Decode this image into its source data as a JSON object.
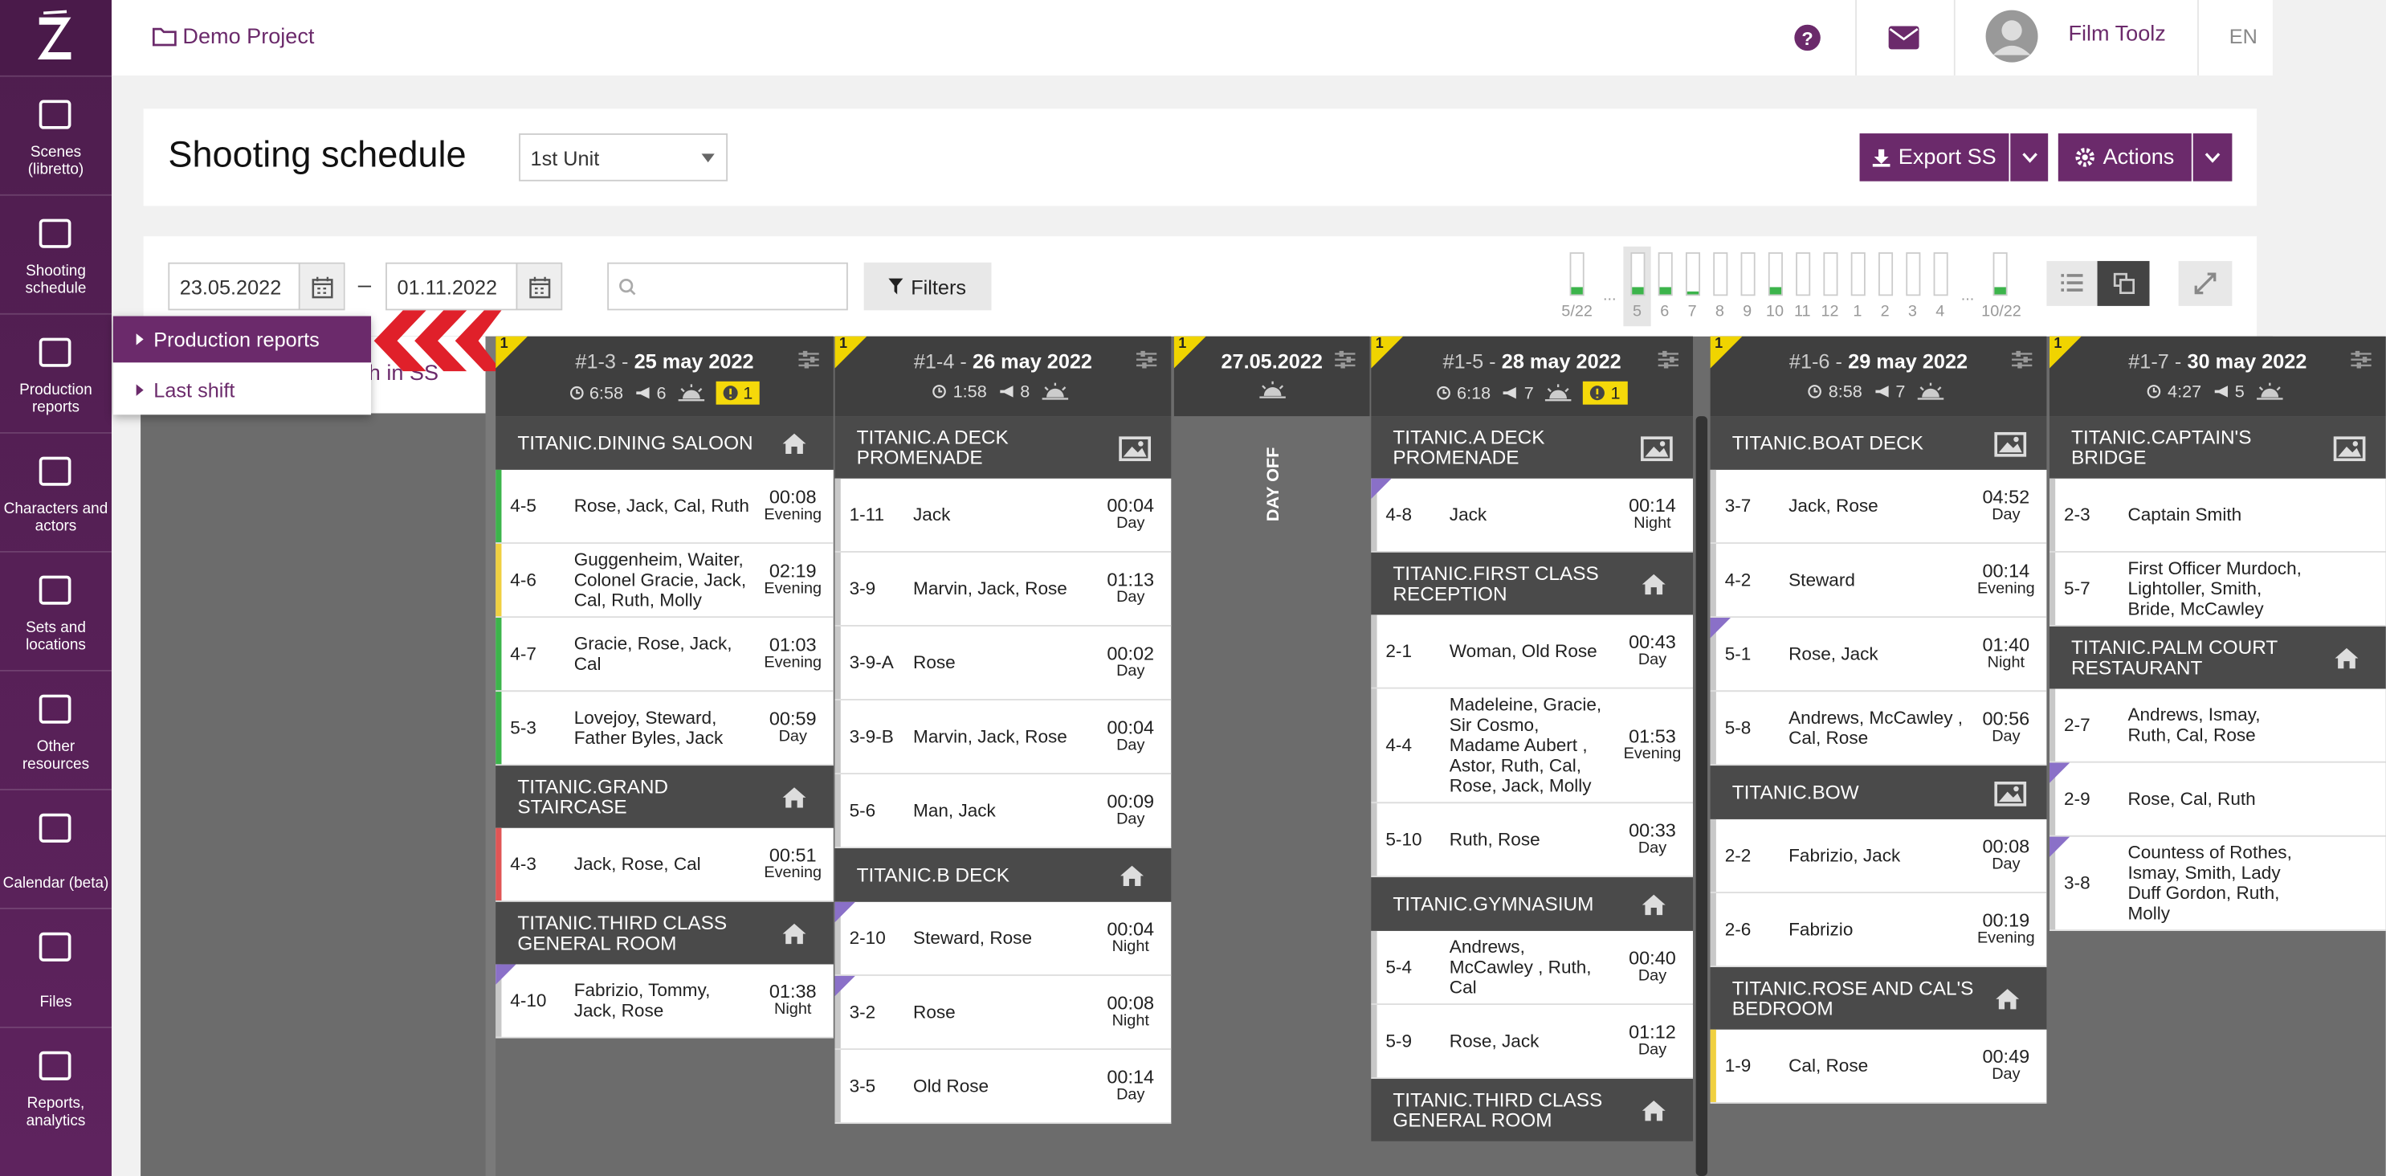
{
  "sidebar": {
    "items": [
      "Scenes (libretto)",
      "Shooting schedule",
      "Production reports",
      "Characters and actors",
      "Sets and locations",
      "Other resources",
      "Calendar (beta)",
      "Files",
      "Reports, analytics"
    ]
  },
  "header": {
    "project": "Demo Project",
    "user": "Film Toolz",
    "language": "EN"
  },
  "toolbar": {
    "title": "Shooting schedule",
    "unit": "1st Unit",
    "export": "Export SS",
    "actions": "Actions"
  },
  "filters": {
    "date_from": "23.05.2022",
    "date_to": "01.11.2022",
    "filters": "Filters",
    "search": "Search in SS"
  },
  "day_strip": [
    "5/22",
    "...",
    "5",
    "6",
    "7",
    "8",
    "9",
    "10",
    "11",
    "12",
    "1",
    "2",
    "3",
    "4",
    "...",
    "10/22"
  ],
  "menu": [
    "Production reports",
    "Last shift"
  ],
  "columns": [
    {
      "badge": "1",
      "id": "#1-3 -",
      "date": "25 may 2022",
      "duration": "6:58",
      "scenes": "6",
      "warning": "1",
      "sets": [
        {
          "name": "TITANIC.DINING SALOON",
          "icon": "home",
          "scenes": [
            {
              "n": "4-5",
              "cast": "Rose, Jack, Cal, Ruth",
              "time": "00:08",
              "period": "Evening",
              "stripe": "#3cb44b"
            },
            {
              "n": "4-6",
              "cast": "Guggenheim, Waiter, Colonel Gracie, Jaсk, Cal, Ruth, Molly",
              "time": "02:19",
              "period": "Evening",
              "stripe": "#f0d040"
            },
            {
              "n": "4-7",
              "cast": "Gracie, Rose, Jaсk, Cal",
              "time": "01:03",
              "period": "Evening",
              "stripe": "#3cb44b"
            },
            {
              "n": "5-3",
              "cast": "Lovejoy, Steward, Father Byles, Jaсk",
              "time": "00:59",
              "period": "Day",
              "stripe": "#3cb44b"
            }
          ]
        },
        {
          "name": "TITANIC.GRAND STAIRCASE",
          "icon": "home",
          "scenes": [
            {
              "n": "4-3",
              "cast": "Jaсk, Rose, Cal",
              "time": "00:51",
              "period": "Evening",
              "stripe": "#e05555"
            }
          ]
        },
        {
          "name": "TITANIC.THIRD CLASS GENERAL ROOM",
          "icon": "home",
          "scenes": [
            {
              "n": "4-10",
              "cast": "Fabrizio, Tommy, Jaсk, Rose",
              "time": "01:38",
              "period": "Night",
              "stripe": "#c8c8c8",
              "corner": true
            }
          ]
        }
      ]
    },
    {
      "badge": "1",
      "id": "#1-4 -",
      "date": "26 may 2022",
      "duration": "1:58",
      "scenes": "8",
      "sets": [
        {
          "name": "TITANIC.A DECK PROMENADE",
          "icon": "image",
          "scenes": [
            {
              "n": "1-11",
              "cast": "Jaсk",
              "time": "00:04",
              "period": "Day",
              "stripe": "#c8c8c8"
            },
            {
              "n": "3-9",
              "cast": "Marvin, Jaсk, Rose",
              "time": "01:13",
              "period": "Day",
              "stripe": "#c8c8c8"
            },
            {
              "n": "3-9-A",
              "cast": "Rose",
              "time": "00:02",
              "period": "Day",
              "stripe": "#c8c8c8"
            },
            {
              "n": "3-9-B",
              "cast": "Marvin, Jaсk, Rose",
              "time": "00:04",
              "period": "Day",
              "stripe": "#c8c8c8"
            },
            {
              "n": "5-6",
              "cast": "Man, Jaсk",
              "time": "00:09",
              "period": "Day",
              "stripe": "#c8c8c8"
            }
          ]
        },
        {
          "name": "TITANIC.B DECK",
          "icon": "home",
          "scenes": [
            {
              "n": "2-10",
              "cast": "Steward, Rose",
              "time": "00:04",
              "period": "Night",
              "stripe": "#c8c8c8",
              "corner": true
            },
            {
              "n": "3-2",
              "cast": "Rose",
              "time": "00:08",
              "period": "Night",
              "stripe": "#c8c8c8",
              "corner": true
            },
            {
              "n": "3-5",
              "cast": "Old Rose",
              "time": "00:14",
              "period": "Day",
              "stripe": "#c8c8c8"
            }
          ]
        }
      ]
    },
    {
      "badge": "1",
      "date": "27.05.2022",
      "day_off": "DAY OFF"
    },
    {
      "badge": "1",
      "id": "#1-5 -",
      "date": "28 may 2022",
      "duration": "6:18",
      "scenes": "7",
      "warning": "1",
      "sets": [
        {
          "name": "TITANIC.A DECK PROMENADE",
          "icon": "image",
          "scenes": [
            {
              "n": "4-8",
              "cast": "Jaсk",
              "time": "00:14",
              "period": "Night",
              "stripe": "#c8c8c8",
              "corner": true
            }
          ]
        },
        {
          "name": "TITANIC.FIRST CLASS RECEPTION",
          "icon": "home",
          "scenes": [
            {
              "n": "2-1",
              "cast": "Woman, Old Rose",
              "time": "00:43",
              "period": "Day",
              "stripe": "#c8c8c8"
            },
            {
              "n": "4-4",
              "cast": "Madeleine, Gracie, Sir Cosmo, Madame Aubert , Astor, Ruth, Cal, Rose, Jaсk, Molly",
              "time": "01:53",
              "period": "Evening",
              "stripe": "#c8c8c8"
            },
            {
              "n": "5-10",
              "cast": "Ruth, Rose",
              "time": "00:33",
              "period": "Day",
              "stripe": "#c8c8c8"
            }
          ]
        },
        {
          "name": "TITANIC.GYMNASIUM",
          "icon": "home",
          "scenes": [
            {
              "n": "5-4",
              "cast": "Andrews, McCawley , Ruth, Cal",
              "time": "00:40",
              "period": "Day",
              "stripe": "#c8c8c8"
            },
            {
              "n": "5-9",
              "cast": "Rose, Jaсk",
              "time": "01:12",
              "period": "Day",
              "stripe": "#c8c8c8"
            }
          ]
        },
        {
          "name": "TITANIC.THIRD CLASS GENERAL ROOM",
          "icon": "home",
          "scenes": []
        }
      ]
    },
    {
      "badge": "1",
      "id": "#1-6 -",
      "date": "29 may 2022",
      "duration": "8:58",
      "scenes": "7",
      "sets": [
        {
          "name": "TITANIC.BOAT DECK",
          "icon": "image",
          "scenes": [
            {
              "n": "3-7",
              "cast": "Jaсk, Rose",
              "time": "04:52",
              "period": "Day",
              "stripe": "#c8c8c8"
            },
            {
              "n": "4-2",
              "cast": "Steward",
              "time": "00:14",
              "period": "Evening",
              "stripe": "#c8c8c8"
            },
            {
              "n": "5-1",
              "cast": "Rose, Jaсk",
              "time": "01:40",
              "period": "Night",
              "stripe": "#c8c8c8",
              "corner": true
            },
            {
              "n": "5-8",
              "cast": "Andrews, McCawley , Cal, Rose",
              "time": "00:56",
              "period": "Day",
              "stripe": "#c8c8c8"
            }
          ]
        },
        {
          "name": "TITANIC.BOW",
          "icon": "image",
          "scenes": [
            {
              "n": "2-2",
              "cast": "Fabrizio, Jaсk",
              "time": "00:08",
              "period": "Day",
              "stripe": "#c8c8c8"
            },
            {
              "n": "2-6",
              "cast": "Fabrizio",
              "time": "00:19",
              "period": "Evening",
              "stripe": "#c8c8c8"
            }
          ]
        },
        {
          "name": "TITANIC.ROSE AND CAL'S BEDROOM",
          "icon": "home",
          "scenes": [
            {
              "n": "1-9",
              "cast": "Cal, Rose",
              "time": "00:49",
              "period": "Day",
              "stripe": "#f0d040"
            }
          ]
        }
      ]
    },
    {
      "badge": "1",
      "id": "#1-7 -",
      "date": "30 may 2022",
      "duration": "4:27",
      "scenes": "5",
      "sets": [
        {
          "name": "TITANIC.CAPTAIN'S BRIDGE",
          "icon": "image",
          "scenes": [
            {
              "n": "2-3",
              "cast": "Captain Smith",
              "stripe": "#c8c8c8"
            },
            {
              "n": "5-7",
              "cast": "First Officer Murdoch, Lightoller, Smith, Bride, McCawley",
              "stripe": "#c8c8c8"
            }
          ]
        },
        {
          "name": "TITANIC.PALM COURT RESTAURANT",
          "icon": "home",
          "scenes": [
            {
              "n": "2-7",
              "cast": "Andrews, Ismay, Ruth, Cal, Rose",
              "stripe": "#c8c8c8"
            },
            {
              "n": "2-9",
              "cast": "Rose, Cal, Ruth",
              "stripe": "#c8c8c8",
              "corner": true
            },
            {
              "n": "3-8",
              "cast": "Countess of Rothes, Ismay, Smith, Lady Duff Gordon, Ruth, Molly",
              "stripe": "#c8c8c8",
              "corner": true
            }
          ]
        }
      ]
    }
  ]
}
